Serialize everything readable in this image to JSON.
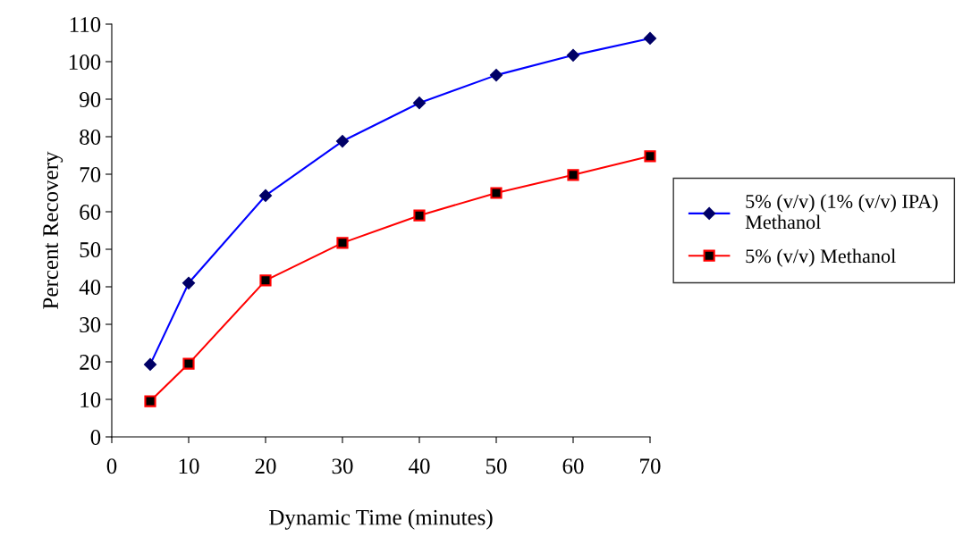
{
  "chart_data": {
    "type": "line",
    "xlabel": "Dynamic Time (minutes)",
    "ylabel": "Percent Recovery",
    "x": [
      5,
      10,
      20,
      30,
      40,
      50,
      60,
      70
    ],
    "series": [
      {
        "name": "5% (v/v) (1% (v/v) IPA) Methanol",
        "color": "#0000ff",
        "marker": "diamond",
        "values": [
          19.3,
          41,
          64.3,
          78.8,
          89,
          96.4,
          101.7,
          106.2
        ]
      },
      {
        "name": "5% (v/v) Methanol",
        "color": "#ff0000",
        "marker": "square",
        "values": [
          9.5,
          19.5,
          41.7,
          51.7,
          59,
          65,
          69.8,
          74.8
        ]
      }
    ],
    "xlim": [
      0,
      70
    ],
    "xticks": [
      0,
      10,
      20,
      30,
      40,
      50,
      60,
      70
    ],
    "ylim": [
      0,
      110
    ],
    "yticks": [
      0,
      10,
      20,
      30,
      40,
      50,
      60,
      70,
      80,
      90,
      100,
      110
    ],
    "grid": false,
    "legend": "right",
    "line_style": "solid"
  }
}
